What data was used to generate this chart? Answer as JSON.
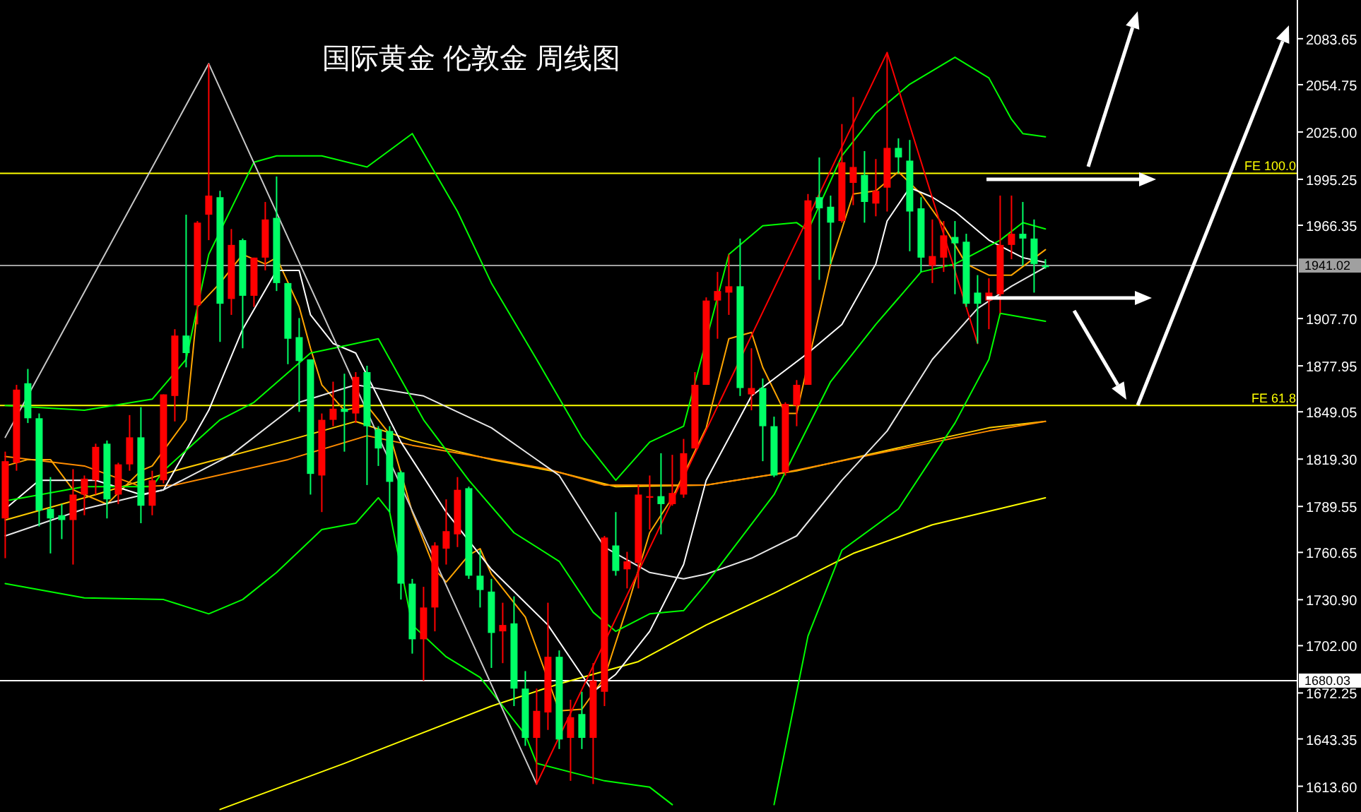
{
  "chart_data": {
    "type": "candlestick",
    "title": "国际黄金 伦敦金 周线图",
    "categories": [
      null,
      null,
      null,
      null,
      null,
      null,
      null,
      null,
      null,
      null,
      null,
      null,
      null,
      null,
      null,
      null,
      null,
      null,
      null,
      null,
      null,
      null,
      null,
      null,
      null,
      null,
      null,
      null,
      null,
      null,
      null,
      null,
      null,
      null,
      null,
      null,
      null,
      null,
      null,
      null,
      null,
      null,
      null,
      null,
      null,
      null,
      null,
      null,
      null,
      null,
      null,
      null,
      null,
      null,
      null,
      null,
      null,
      null,
      null,
      null,
      null,
      null,
      null,
      null,
      null,
      null,
      null,
      null,
      null,
      null,
      null,
      null,
      null,
      null,
      null,
      null,
      null,
      null,
      null,
      null,
      null,
      null,
      null,
      null,
      null,
      null,
      null,
      null,
      null,
      null,
      null,
      null,
      null
    ],
    "ohlc": [
      [
        1782,
        1824,
        1757,
        1818
      ],
      [
        1817,
        1866,
        1812,
        1863
      ],
      [
        1867,
        1876,
        1842,
        1845
      ],
      [
        1845,
        1848,
        1777,
        1787
      ],
      [
        1788,
        1808,
        1760,
        1782
      ],
      [
        1784,
        1791,
        1769,
        1781
      ],
      [
        1781,
        1813,
        1753,
        1797
      ],
      [
        1797,
        1809,
        1784,
        1807
      ],
      [
        1806,
        1829,
        1797,
        1827
      ],
      [
        1829,
        1831,
        1782,
        1794
      ],
      [
        1797,
        1817,
        1791,
        1816
      ],
      [
        1816,
        1847,
        1812,
        1833
      ],
      [
        1833,
        1852,
        1779,
        1790
      ],
      [
        1790,
        1812,
        1784,
        1806
      ],
      [
        1806,
        1860,
        1804,
        1860
      ],
      [
        1859,
        1901,
        1843,
        1897
      ],
      [
        1897,
        1973,
        1877,
        1886
      ],
      [
        1916,
        1969,
        1904,
        1968
      ],
      [
        1973,
        2068,
        1957,
        1985
      ],
      [
        1984,
        1988,
        1893,
        1917
      ],
      [
        1920,
        1964,
        1910,
        1954
      ],
      [
        1957,
        1958,
        1889,
        1922
      ],
      [
        1922,
        1946,
        1915,
        1946
      ],
      [
        1946,
        1981,
        1938,
        1970
      ],
      [
        1971,
        1997,
        1925,
        1930
      ],
      [
        1930,
        1930,
        1879,
        1895
      ],
      [
        1896,
        1908,
        1849,
        1881
      ],
      [
        1882,
        1882,
        1797,
        1810
      ],
      [
        1809,
        1848,
        1786,
        1844
      ],
      [
        1844,
        1868,
        1840,
        1851
      ],
      [
        1851,
        1873,
        1824,
        1849
      ],
      [
        1848,
        1874,
        1842,
        1871
      ],
      [
        1874,
        1878,
        1803,
        1840
      ],
      [
        1838,
        1840,
        1815,
        1826
      ],
      [
        1837,
        1840,
        1786,
        1805
      ],
      [
        1811,
        1812,
        1731,
        1741
      ],
      [
        1741,
        1744,
        1697,
        1706
      ],
      [
        1706,
        1739,
        1680,
        1726
      ],
      [
        1726,
        1767,
        1711,
        1765
      ],
      [
        1763,
        1794,
        1753,
        1774
      ],
      [
        1772,
        1808,
        1764,
        1800
      ],
      [
        1801,
        1802,
        1744,
        1746
      ],
      [
        1746,
        1762,
        1726,
        1737
      ],
      [
        1736,
        1744,
        1688,
        1710
      ],
      [
        1711,
        1729,
        1691,
        1715
      ],
      [
        1716,
        1733,
        1664,
        1675
      ],
      [
        1675,
        1686,
        1639,
        1644
      ],
      [
        1644,
        1675,
        1615,
        1661
      ],
      [
        1660,
        1729,
        1649,
        1695
      ],
      [
        1695,
        1699,
        1637,
        1643
      ],
      [
        1644,
        1668,
        1617,
        1657
      ],
      [
        1659,
        1673,
        1637,
        1644
      ],
      [
        1644,
        1691,
        1615,
        1680
      ],
      [
        1673,
        1771,
        1664,
        1770
      ],
      [
        1765,
        1786,
        1746,
        1749
      ],
      [
        1750,
        1761,
        1738,
        1755
      ],
      [
        1754,
        1803,
        1738,
        1797
      ],
      [
        1795,
        1809,
        1775,
        1796
      ],
      [
        1796,
        1823,
        1772,
        1791
      ],
      [
        1791,
        1822,
        1790,
        1798
      ],
      [
        1797,
        1832,
        1795,
        1823
      ],
      [
        1826,
        1874,
        1826,
        1866
      ],
      [
        1866,
        1921,
        1866,
        1919
      ],
      [
        1919,
        1937,
        1895,
        1925
      ],
      [
        1924,
        1948,
        1910,
        1928
      ],
      [
        1928,
        1958,
        1859,
        1864
      ],
      [
        1860,
        1889,
        1850,
        1864
      ],
      [
        1864,
        1870,
        1818,
        1840
      ],
      [
        1840,
        1846,
        1808,
        1809
      ],
      [
        1811,
        1855,
        1809,
        1854
      ],
      [
        1853,
        1869,
        1840,
        1866
      ],
      [
        1866,
        1986,
        1866,
        1982
      ],
      [
        1984,
        2009,
        1932,
        1977
      ],
      [
        1978,
        1985,
        1942,
        1968
      ],
      [
        1969,
        2030,
        1968,
        2006
      ],
      [
        1993,
        2047,
        1979,
        2003
      ],
      [
        1998,
        2013,
        1968,
        1981
      ],
      [
        1980,
        2008,
        1972,
        1988
      ],
      [
        1990,
        2075,
        1975,
        2015
      ],
      [
        2015,
        2021,
        1999,
        2009
      ],
      [
        2007,
        2020,
        1950,
        1975
      ],
      [
        1977,
        1984,
        1937,
        1946
      ],
      [
        1941,
        1970,
        1930,
        1947
      ],
      [
        1946,
        1969,
        1937,
        1960
      ],
      [
        1959,
        1969,
        1923,
        1955
      ],
      [
        1956,
        1961,
        1915,
        1917
      ],
      [
        1924,
        1935,
        1892,
        1917
      ],
      [
        1919,
        1933,
        1901,
        1924
      ],
      [
        1923,
        1985,
        1911,
        1954
      ],
      [
        1954,
        1985,
        1945,
        1961
      ],
      [
        1961,
        1981,
        1941,
        1958
      ],
      [
        1958,
        1970,
        1924,
        1942
      ],
      [
        1941,
        1945,
        1939,
        1940
      ]
    ],
    "colors": [
      "#ff0000",
      "#ff0000",
      "#00ff66",
      "#00ff66",
      "#00ff66",
      "#00ff66",
      "#ff0000",
      "#ff0000",
      "#ff0000",
      "#00ff66",
      "#ff0000",
      "#ff0000",
      "#00ff66",
      "#ff0000",
      "#ff0000",
      "#ff0000",
      "#00ff66",
      "#ff0000",
      "#ff0000",
      "#00ff66",
      "#ff0000",
      "#00ff66",
      "#ff0000",
      "#ff0000",
      "#00ff66",
      "#00ff66",
      "#00ff66",
      "#00ff66",
      "#ff0000",
      "#ff0000",
      "#00ff66",
      "#ff0000",
      "#00ff66",
      "#00ff66",
      "#00ff66",
      "#00ff66",
      "#00ff66",
      "#ff0000",
      "#ff0000",
      "#ff0000",
      "#ff0000",
      "#00ff66",
      "#00ff66",
      "#00ff66",
      "#ff0000",
      "#00ff66",
      "#00ff66",
      "#ff0000",
      "#ff0000",
      "#00ff66",
      "#ff0000",
      "#00ff66",
      "#ff0000",
      "#ff0000",
      "#00ff66",
      "#ff0000",
      "#ff0000",
      "#ff0000",
      "#00ff66",
      "#ff0000",
      "#ff0000",
      "#ff0000",
      "#ff0000",
      "#ff0000",
      "#ff0000",
      "#00ff66",
      "#ff0000",
      "#00ff66",
      "#00ff66",
      "#ff0000",
      "#ff0000",
      "#ff0000",
      "#00ff66",
      "#00ff66",
      "#ff0000",
      "#ff0000",
      "#00ff66",
      "#ff0000",
      "#ff0000",
      "#00ff66",
      "#00ff66",
      "#00ff66",
      "#ff0000",
      "#ff0000",
      "#00ff66",
      "#00ff66",
      "#00ff66",
      "#ff0000",
      "#ff0000",
      "#ff0000",
      "#00ff66",
      "#00ff66",
      "#00ff66"
    ],
    "series": [
      {
        "type": "line",
        "color": "#ffff00",
        "values": [
          null,
          null,
          null,
          null,
          null,
          null,
          null,
          null,
          null,
          null,
          null,
          null,
          null,
          null,
          null,
          null,
          null,
          null,
          null,
          1599,
          null,
          null,
          null,
          null,
          null,
          null,
          null,
          null,
          null,
          null,
          1628,
          null,
          null,
          null,
          null,
          null,
          null,
          null,
          null,
          null,
          null,
          null,
          null,
          1664,
          null,
          null,
          null,
          null,
          null,
          1678,
          null,
          null,
          null,
          null,
          null,
          null,
          1692,
          null,
          null,
          null,
          null,
          null,
          1715,
          null,
          null,
          null,
          null,
          null,
          1735,
          null,
          null,
          null,
          null,
          null,
          null,
          1760,
          null,
          null,
          null,
          null,
          null,
          null,
          1778,
          null,
          null,
          null,
          null,
          null,
          null,
          null,
          null,
          null,
          1795
        ]
      },
      {
        "type": "line",
        "color": "#ffcc00",
        "values": [
          1781,
          null,
          null,
          null,
          null,
          null,
          null,
          null,
          1797,
          null,
          null,
          null,
          null,
          null,
          null,
          1812,
          null,
          null,
          null,
          null,
          null,
          null,
          null,
          null,
          null,
          1831,
          null,
          null,
          null,
          null,
          null,
          1843,
          null,
          null,
          null,
          null,
          1831,
          null,
          null,
          null,
          null,
          null,
          null,
          1819,
          null,
          null,
          null,
          null,
          null,
          1811,
          null,
          null,
          null,
          null,
          1802,
          null,
          null,
          null,
          null,
          null,
          null,
          null,
          1803,
          null,
          null,
          null,
          null,
          null,
          null,
          null,
          1812,
          null,
          null,
          null,
          null,
          null,
          null,
          null,
          null,
          null,
          1828,
          null,
          null,
          null,
          null,
          null,
          null,
          1839,
          null,
          null,
          null,
          null,
          1843
        ]
      },
      {
        "type": "line",
        "color": "#ff8c00",
        "values": [
          1821,
          null,
          null,
          null,
          null,
          null,
          null,
          1815,
          null,
          null,
          null,
          null,
          1802,
          null,
          null,
          1803,
          null,
          null,
          null,
          null,
          null,
          null,
          null,
          null,
          null,
          1819,
          null,
          null,
          null,
          null,
          null,
          null,
          1834,
          null,
          null,
          null,
          1828,
          null,
          null,
          null,
          null,
          1822,
          null,
          null,
          null,
          null,
          null,
          null,
          1813,
          null,
          null,
          null,
          null,
          1803,
          null,
          null,
          null,
          null,
          1803,
          null,
          null,
          null,
          1803,
          null,
          null,
          null,
          null,
          null,
          null,
          1811,
          null,
          null,
          null,
          null,
          null,
          null,
          null,
          null,
          1824,
          null,
          null,
          null,
          null,
          null,
          null,
          null,
          null,
          1837,
          null,
          null,
          null,
          null,
          1843
        ]
      },
      {
        "type": "line",
        "color": "#ffa500",
        "values": [
          1815,
          null,
          1819,
          null,
          1819,
          null,
          1800,
          null,
          null,
          1791,
          null,
          null,
          1812,
          1815,
          null,
          null,
          1844,
          1915,
          null,
          1930,
          null,
          1948,
          null,
          1942,
          1946,
          null,
          1915,
          1889,
          1866,
          null,
          1850,
          null,
          1853,
          null,
          1835,
          null,
          1786,
          null,
          1750,
          1742,
          null,
          1759,
          1763,
          1747,
          null,
          null,
          1720,
          null,
          null,
          1661,
          null,
          1662,
          null,
          1682,
          null,
          1726,
          null,
          1773,
          null,
          1795,
          null,
          null,
          1839,
          null,
          1895,
          null,
          1899,
          1877,
          null,
          1848,
          1848,
          null,
          null,
          1942,
          null,
          1986,
          null,
          1988,
          null,
          2000,
          null,
          1986,
          null,
          1966,
          null,
          1942,
          null,
          1935,
          null,
          1935,
          null,
          null,
          1951
        ]
      },
      {
        "type": "line",
        "color": "#ffffff",
        "values": [
          1788,
          null,
          null,
          1806,
          null,
          null,
          null,
          null,
          1806,
          null,
          null,
          null,
          1797,
          null,
          1800,
          null,
          null,
          null,
          1850,
          null,
          null,
          1901,
          null,
          null,
          1938,
          null,
          1938,
          1910,
          null,
          1892,
          null,
          1886,
          null,
          null,
          null,
          1830,
          null,
          null,
          null,
          1786,
          null,
          null,
          null,
          1750,
          null,
          null,
          null,
          null,
          1715,
          null,
          null,
          null,
          1673,
          null,
          1684,
          null,
          null,
          1711,
          null,
          null,
          1753,
          null,
          1806,
          null,
          null,
          null,
          1859,
          null,
          null,
          null,
          null,
          1886,
          null,
          null,
          1904,
          null,
          null,
          1942,
          1969,
          null,
          1990,
          null,
          1984,
          null,
          1975,
          null,
          null,
          1957,
          null,
          null,
          1946,
          null,
          1943
        ]
      },
      {
        "type": "line",
        "color": "#e8e8e8",
        "values": [
          1771,
          null,
          null,
          null,
          null,
          null,
          null,
          1788,
          null,
          null,
          null,
          null,
          null,
          null,
          1800,
          null,
          null,
          null,
          null,
          null,
          1822,
          null,
          null,
          null,
          null,
          null,
          1855,
          null,
          null,
          null,
          null,
          1866,
          null,
          null,
          null,
          null,
          null,
          1859,
          null,
          null,
          null,
          null,
          null,
          1839,
          null,
          null,
          null,
          null,
          null,
          1809,
          null,
          null,
          null,
          1764,
          null,
          null,
          null,
          1748,
          null,
          null,
          1744,
          null,
          1747,
          null,
          null,
          null,
          1757,
          null,
          null,
          null,
          1771,
          null,
          null,
          null,
          1806,
          null,
          null,
          null,
          1837,
          null,
          null,
          null,
          1882,
          null,
          null,
          null,
          1914,
          null,
          null,
          1928,
          null,
          null,
          1940
        ]
      },
      {
        "type": "line",
        "color": "#00ff00",
        "values": [
          1853,
          null,
          null,
          null,
          null,
          null,
          null,
          1850,
          null,
          null,
          null,
          null,
          null,
          1857,
          null,
          null,
          1882,
          null,
          1948,
          null,
          null,
          null,
          2006,
          null,
          2010,
          null,
          null,
          null,
          2010,
          null,
          null,
          null,
          2003,
          null,
          null,
          null,
          2024,
          null,
          null,
          null,
          1975,
          null,
          null,
          1930,
          null,
          null,
          null,
          1882,
          null,
          null,
          null,
          1833,
          null,
          null,
          1806,
          null,
          null,
          1830,
          null,
          null,
          1840,
          null,
          null,
          null,
          1948,
          null,
          null,
          1966,
          null,
          null,
          1968,
          1963,
          null,
          null,
          2010,
          null,
          null,
          2037,
          null,
          null,
          2055,
          null,
          null,
          null,
          2072,
          null,
          null,
          2059,
          null,
          2033,
          2024,
          null,
          2022
        ]
      },
      {
        "type": "line",
        "color": "#00ff00",
        "values": [
          1793,
          null,
          null,
          null,
          null,
          null,
          null,
          1802,
          null,
          null,
          null,
          null,
          null,
          1802,
          1812,
          null,
          null,
          null,
          null,
          1844,
          null,
          null,
          1855,
          null,
          null,
          null,
          null,
          1886,
          null,
          null,
          null,
          1892,
          null,
          1895,
          null,
          null,
          null,
          1844,
          null,
          null,
          null,
          1806,
          null,
          null,
          null,
          1773,
          null,
          null,
          null,
          1755,
          null,
          null,
          1723,
          null,
          1711,
          null,
          null,
          1722,
          null,
          null,
          1724,
          null,
          1741,
          null,
          null,
          null,
          null,
          null,
          1797,
          null,
          null,
          null,
          null,
          1868,
          null,
          null,
          null,
          1904,
          null,
          null,
          null,
          1937,
          null,
          null,
          1942,
          null,
          null,
          null,
          1957,
          null,
          1968,
          null,
          1964
        ]
      },
      {
        "type": "line",
        "color": "#00ff00",
        "values": [
          1741,
          null,
          null,
          null,
          null,
          null,
          null,
          1732,
          null,
          null,
          null,
          null,
          null,
          null,
          1731,
          null,
          null,
          null,
          1722,
          null,
          null,
          1731,
          null,
          null,
          1748,
          null,
          null,
          null,
          1775,
          null,
          null,
          1779,
          null,
          1795,
          1786,
          null,
          1715,
          null,
          null,
          1695,
          null,
          null,
          1682,
          1673,
          null,
          null,
          1646,
          1628,
          null,
          null,
          null,
          null,
          null,
          1617,
          null,
          null,
          null,
          1613,
          null,
          1602,
          null,
          null,
          null,
          null,
          null,
          null,
          null,
          null,
          null,
          null,
          null,
          null,
          null,
          null,
          null,
          null,
          null,
          null,
          null,
          null,
          null,
          null,
          null,
          null,
          null,
          null,
          null,
          null,
          null,
          null,
          null,
          null,
          null
        ]
      },
      {
        "type": "line",
        "color": "#00ff00",
        "values": [
          null,
          null,
          null,
          null,
          null,
          null,
          null,
          null,
          null,
          null,
          null,
          null,
          null,
          null,
          null,
          null,
          null,
          null,
          null,
          null,
          null,
          null,
          null,
          null,
          null,
          null,
          null,
          null,
          null,
          null,
          null,
          null,
          null,
          null,
          null,
          null,
          null,
          null,
          null,
          null,
          null,
          null,
          null,
          null,
          null,
          null,
          null,
          null,
          null,
          null,
          null,
          null,
          null,
          null,
          null,
          null,
          null,
          null,
          null,
          null,
          null,
          null,
          null,
          null,
          null,
          null,
          null,
          null,
          1602,
          null,
          null,
          1708,
          null,
          null,
          1762,
          null,
          null,
          null,
          null,
          1788,
          null,
          null,
          null,
          null,
          1842,
          null,
          null,
          1882,
          1911,
          null,
          null,
          null,
          1906
        ]
      },
      {
        "type": "line",
        "color": "#c8c8c8",
        "values": [
          1833,
          null,
          null,
          null,
          null,
          null,
          null,
          null,
          null,
          null,
          null,
          null,
          null,
          null,
          null,
          null,
          null,
          null,
          2068,
          null,
          null,
          null,
          null,
          null,
          null,
          null,
          null,
          null,
          null,
          null,
          null,
          null,
          null,
          null,
          null,
          null,
          null,
          null,
          null,
          null,
          null,
          null,
          null,
          null,
          null,
          null,
          null,
          1615,
          null,
          null,
          null,
          null,
          null,
          null,
          null,
          null,
          null,
          null,
          null,
          null,
          null,
          null,
          null,
          null,
          null,
          null,
          null,
          null,
          null,
          null,
          null,
          null,
          null,
          null,
          null,
          null,
          null,
          null,
          null,
          null,
          null,
          null,
          null,
          null,
          null,
          null,
          null,
          null,
          null,
          null,
          null,
          null,
          null
        ]
      },
      {
        "type": "line",
        "color": "#ff0000",
        "values": [
          null,
          null,
          null,
          null,
          null,
          null,
          null,
          null,
          null,
          null,
          null,
          null,
          null,
          null,
          null,
          null,
          null,
          null,
          null,
          null,
          null,
          null,
          null,
          null,
          null,
          null,
          null,
          null,
          null,
          null,
          null,
          null,
          null,
          null,
          null,
          null,
          null,
          null,
          null,
          null,
          null,
          null,
          null,
          null,
          null,
          null,
          null,
          1615,
          null,
          null,
          null,
          null,
          null,
          null,
          null,
          null,
          null,
          null,
          null,
          null,
          null,
          null,
          null,
          null,
          null,
          null,
          null,
          null,
          null,
          null,
          null,
          null,
          null,
          null,
          null,
          null,
          null,
          null,
          2075,
          null,
          null,
          null,
          null,
          null,
          null,
          null,
          1892,
          null,
          null,
          null,
          null,
          null,
          null
        ]
      }
    ],
    "ref_lines": [
      {
        "axis": "y",
        "value": 1999,
        "label": "FE 100.0",
        "color": "#ffff00"
      },
      {
        "axis": "y",
        "value": 1853,
        "label": "FE 61.8",
        "color": "#ffff00"
      },
      {
        "axis": "y",
        "value": 1941.02,
        "label": "1941.02",
        "color": "#a0a0a0"
      },
      {
        "axis": "y",
        "value": 1680.03,
        "label": "1680.03",
        "color": "#ffffff"
      }
    ],
    "ylim": [
      1597.4,
      2108
    ],
    "yticks": [
      {
        "value": 2083.65,
        "label": "2083.65"
      },
      {
        "value": 2054.75,
        "label": "2054.75"
      },
      {
        "value": 2025,
        "label": "2025.00"
      },
      {
        "value": 1995.25,
        "label": "1995.25"
      },
      {
        "value": 1966.35,
        "label": "1966.35"
      },
      {
        "value": 1907.7,
        "label": "1907.70"
      },
      {
        "value": 1877.95,
        "label": "1877.95"
      },
      {
        "value": 1849.05,
        "label": "1849.05"
      },
      {
        "value": 1819.3,
        "label": "1819.30"
      },
      {
        "value": 1789.55,
        "label": "1789.55"
      },
      {
        "value": 1760.65,
        "label": "1760.65"
      },
      {
        "value": 1730.9,
        "label": "1730.90"
      },
      {
        "value": 1702,
        "label": "1702.00"
      },
      {
        "value": 1672.25,
        "label": "1672.25"
      },
      {
        "value": 1643.35,
        "label": "1643.35"
      },
      {
        "value": 1613.6,
        "label": "1613.60"
      }
    ],
    "tick_labels": "y"
  }
}
